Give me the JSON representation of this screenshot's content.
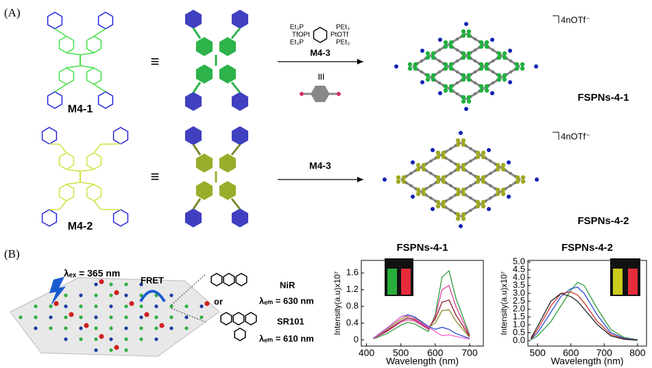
{
  "panel_a": {
    "label": "(A)",
    "row1": {
      "ligand": "M4-1",
      "equiv": "≡",
      "reagent": [
        "Et₃P",
        "TfOPt",
        "Et₃P",
        "PEt₃",
        "PtOTf",
        "PEt₃"
      ],
      "reagent_name": "M4-3",
      "equiv2": "≡",
      "product": "FSPNs-4-1",
      "counterion": "4nOTf⁻"
    },
    "row2": {
      "ligand": "M4-2",
      "equiv": "≡",
      "reagent_name": "M4-3",
      "product": "FSPNs-4-2",
      "counterion": "4nOTf⁻"
    }
  },
  "panel_b": {
    "label": "(B)",
    "excitation": "λₑₓ = 365 nm",
    "transfer": "FRET",
    "dye1": "NiR",
    "dye1_emission": "λₑₘ = 630 nm",
    "or": "or",
    "dye2": "SR101",
    "dye2_emission": "λₑₘ = 610 nm"
  },
  "chart_data": [
    {
      "type": "line",
      "title": "FSPNs-4-1",
      "xlabel": "Wavelength (nm)",
      "ylabel": "Intensity(a.u)x10⁷",
      "x": [
        420,
        460,
        500,
        520,
        540,
        580,
        600,
        620,
        640,
        660,
        700
      ],
      "series": [
        {
          "color": "#2e9a3a",
          "values": [
            0.02,
            0.15,
            0.35,
            0.42,
            0.38,
            0.2,
            0.6,
            1.5,
            1.65,
            1.0,
            0.12
          ]
        },
        {
          "color": "#e0409a",
          "values": [
            0.03,
            0.2,
            0.42,
            0.48,
            0.45,
            0.25,
            0.55,
            1.2,
            1.3,
            0.8,
            0.1
          ]
        },
        {
          "color": "#8b1a2a",
          "values": [
            0.03,
            0.22,
            0.45,
            0.52,
            0.48,
            0.28,
            0.5,
            0.9,
            0.95,
            0.6,
            0.08
          ]
        },
        {
          "color": "#8a8a2a",
          "values": [
            0.03,
            0.25,
            0.5,
            0.56,
            0.52,
            0.3,
            0.4,
            0.7,
            0.72,
            0.45,
            0.06
          ]
        },
        {
          "color": "#2a4ad0",
          "values": [
            0.04,
            0.28,
            0.55,
            0.6,
            0.55,
            0.32,
            0.25,
            0.3,
            0.25,
            0.15,
            0.03
          ]
        },
        {
          "color": "#ff60d0",
          "values": [
            0.03,
            0.27,
            0.55,
            0.58,
            0.5,
            0.3,
            0.2,
            0.1,
            0.12,
            0.08,
            0.02
          ]
        }
      ],
      "xlim": [
        385,
        740
      ],
      "ylim": [
        -0.15,
        1.9
      ],
      "xticks": [
        400,
        500,
        600,
        700
      ],
      "yticks": [
        0,
        0.4,
        0.8,
        1.2,
        1.6
      ]
    },
    {
      "type": "line",
      "title": "FSPNs-4-2",
      "xlabel": "Wavelength (nm)",
      "ylabel": "Intensity(a.u)x10⁷",
      "x": [
        480,
        500,
        540,
        570,
        600,
        620,
        640,
        680,
        720,
        760,
        800
      ],
      "series": [
        {
          "color": "#2e9a3a",
          "values": [
            0.05,
            0.3,
            1.2,
            2.2,
            3.2,
            3.7,
            3.5,
            2.0,
            0.7,
            0.2,
            0.05
          ]
        },
        {
          "color": "#2a4ad0",
          "values": [
            0.08,
            0.5,
            1.8,
            2.8,
            3.3,
            3.4,
            3.0,
            1.6,
            0.5,
            0.15,
            0.03
          ]
        },
        {
          "color": "#d03030",
          "values": [
            0.1,
            0.7,
            2.2,
            3.0,
            3.1,
            2.9,
            2.4,
            1.2,
            0.4,
            0.1,
            0.02
          ]
        },
        {
          "color": "#222222",
          "values": [
            0.15,
            0.9,
            2.5,
            3.0,
            2.8,
            2.5,
            2.0,
            1.0,
            0.3,
            0.08,
            0.02
          ]
        }
      ],
      "xlim": [
        471,
        827
      ],
      "ylim": [
        -0.35,
        5.1
      ],
      "xticks": [
        500,
        600,
        700,
        800
      ],
      "yticks": [
        {
          "value": 0,
          "label": "0.0"
        },
        0.5,
        {
          "value": 1,
          "label": "1.0"
        },
        1.5,
        {
          "value": 2,
          "label": "2.0"
        },
        2.5,
        {
          "value": 3,
          "label": "3.0"
        },
        3.5,
        {
          "value": 4,
          "label": "4.0"
        },
        4.5,
        {
          "value": 5,
          "label": "5.0"
        }
      ]
    }
  ]
}
